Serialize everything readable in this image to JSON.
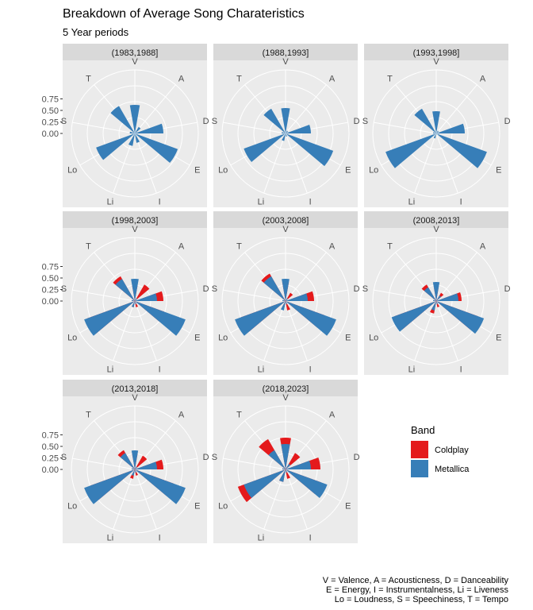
{
  "chart_data": {
    "type": "polar-bar",
    "title": "Breakdown of Average Song Charateristics",
    "subtitle": "5 Year periods",
    "axes": [
      "V",
      "A",
      "D",
      "E",
      "I",
      "Li",
      "Lo",
      "S",
      "T"
    ],
    "r_ticks": [
      "0.75",
      "0.50",
      "0.25",
      "0.00"
    ],
    "r_tick_values": [
      0.75,
      0.5,
      0.25,
      0.0
    ],
    "r_max": 1.0,
    "legend": {
      "title": "Band",
      "entries": [
        {
          "label": "Coldplay",
          "color": "#E41A1C"
        },
        {
          "label": "Metallica",
          "color": "#377EB8"
        }
      ]
    },
    "caption": [
      "V = Valence, A = Acousticness, D = Danceability",
      "E = Energy, I = Instrumentalness, Li = Liveness",
      "Lo = Loudness, S = Speechiness, T = Tempo"
    ],
    "panels": [
      {
        "label": "(1983,1988]",
        "series": [
          {
            "name": "Metallica",
            "values": [
              0.45,
              0.12,
              0.45,
              0.72,
              0.15,
              0.2,
              0.65,
              0.08,
              0.5
            ]
          }
        ]
      },
      {
        "label": "(1988,1993]",
        "series": [
          {
            "name": "Metallica",
            "values": [
              0.4,
              0.05,
              0.4,
              0.8,
              0.05,
              0.12,
              0.7,
              0.06,
              0.45
            ]
          }
        ]
      },
      {
        "label": "(1993,1998]",
        "series": [
          {
            "name": "Metallica",
            "values": [
              0.35,
              0.05,
              0.45,
              0.85,
              0.02,
              0.08,
              0.85,
              0.05,
              0.45
            ]
          }
        ]
      },
      {
        "label": "(1998,2003]",
        "series": [
          {
            "name": "Coldplay",
            "values": [
              0.25,
              0.3,
              0.45,
              0.5,
              0.1,
              0.1,
              0.8,
              0.05,
              0.45
            ]
          },
          {
            "name": "Metallica",
            "values": [
              0.35,
              0.05,
              0.35,
              0.85,
              0.05,
              0.1,
              0.85,
              0.05,
              0.4
            ]
          }
        ]
      },
      {
        "label": "(2003,2008]",
        "series": [
          {
            "name": "Coldplay",
            "values": [
              0.3,
              0.15,
              0.45,
              0.65,
              0.15,
              0.1,
              0.75,
              0.03,
              0.5
            ]
          },
          {
            "name": "Metallica",
            "values": [
              0.35,
              0.05,
              0.35,
              0.85,
              0.05,
              0.15,
              0.85,
              0.05,
              0.45
            ]
          }
        ]
      },
      {
        "label": "(2008,2013]",
        "series": [
          {
            "name": "Coldplay",
            "values": [
              0.2,
              0.15,
              0.4,
              0.7,
              0.1,
              0.2,
              0.7,
              0.03,
              0.3
            ]
          },
          {
            "name": "Metallica",
            "values": [
              0.3,
              0.1,
              0.35,
              0.8,
              0.05,
              0.15,
              0.75,
              0.05,
              0.25
            ]
          }
        ]
      },
      {
        "label": "(2013,2018]",
        "series": [
          {
            "name": "Coldplay",
            "values": [
              0.25,
              0.25,
              0.45,
              0.65,
              0.1,
              0.15,
              0.75,
              0.05,
              0.35
            ]
          },
          {
            "name": "Metallica",
            "values": [
              0.3,
              0.05,
              0.35,
              0.85,
              0.05,
              0.1,
              0.85,
              0.05,
              0.3
            ]
          }
        ]
      },
      {
        "label": "(2018,2023]",
        "series": [
          {
            "name": "Coldplay",
            "values": [
              0.5,
              0.3,
              0.55,
              0.6,
              0.15,
              0.2,
              0.8,
              0.05,
              0.55
            ]
          },
          {
            "name": "Metallica",
            "values": [
              0.4,
              0.1,
              0.4,
              0.7,
              0.05,
              0.2,
              0.7,
              0.05,
              0.35
            ]
          }
        ]
      }
    ]
  }
}
